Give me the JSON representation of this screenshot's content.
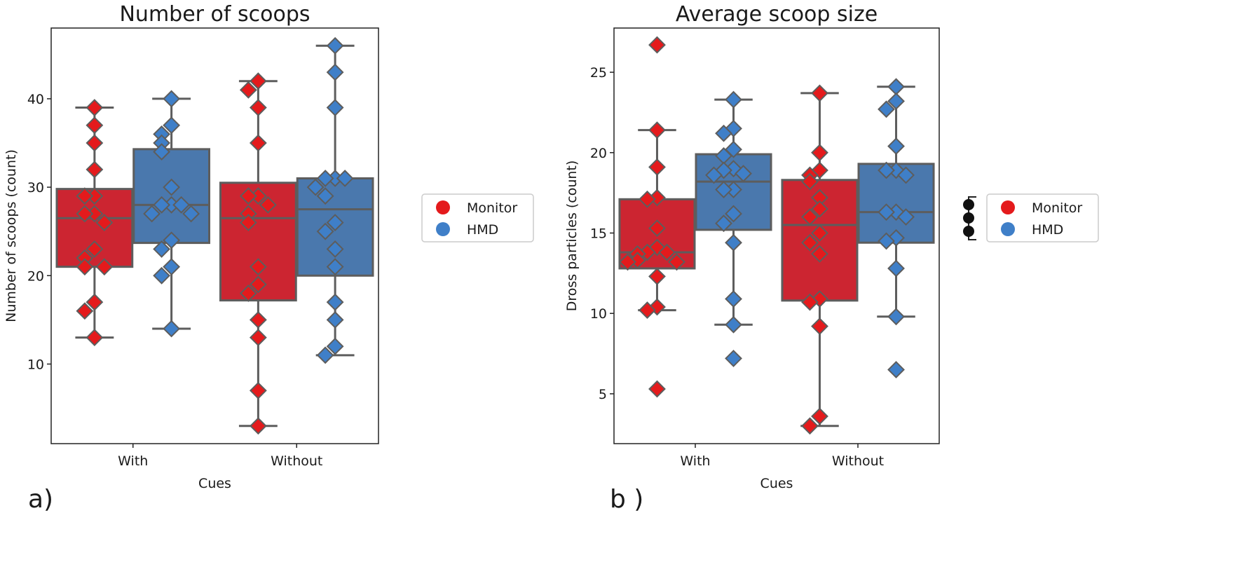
{
  "colors": {
    "Monitor": "#e41a1c",
    "HMD": "#3f7fc8",
    "box_Monitor": "#cc2531",
    "box_HMD": "#4a78ad",
    "edge": "#5d5d5d"
  },
  "legend": [
    "Monitor",
    "HMD"
  ],
  "panel_labels": [
    "a)",
    "b )"
  ],
  "chart_data": [
    {
      "type": "box",
      "title": "Number of scoops",
      "xlabel": "Cues",
      "ylabel": "Number of scoops (count)",
      "categories": [
        "With",
        "Without"
      ],
      "ylim": [
        1,
        48
      ],
      "yticks": [
        10,
        20,
        30,
        40
      ],
      "legend_position": "right-outside",
      "series": [
        {
          "name": "Monitor",
          "boxes": [
            {
              "q1": 21,
              "median": 26.5,
              "q3": 29.8,
              "whislo": 13,
              "whishi": 39,
              "points": [
                39,
                37,
                35,
                32,
                29,
                29,
                27,
                27,
                26,
                23,
                22,
                21,
                21,
                17,
                16,
                13
              ]
            },
            {
              "q1": 17.2,
              "median": 26.5,
              "q3": 30.5,
              "whislo": 3,
              "whishi": 42,
              "points": [
                42,
                41,
                39,
                35,
                29,
                29,
                28,
                27,
                26,
                21,
                19,
                18,
                15,
                13,
                7,
                3
              ]
            }
          ]
        },
        {
          "name": "HMD",
          "boxes": [
            {
              "q1": 23.7,
              "median": 28,
              "q3": 34.3,
              "whislo": 14,
              "whishi": 40,
              "points": [
                40,
                37,
                36,
                35,
                34,
                30,
                28,
                28,
                28,
                27,
                27,
                24,
                23,
                21,
                20,
                14
              ]
            },
            {
              "q1": 20,
              "median": 27.5,
              "q3": 31,
              "whislo": 11,
              "whishi": 46,
              "points": [
                46,
                43,
                39,
                31,
                31,
                31,
                30,
                29,
                26,
                25,
                23,
                21,
                17,
                15,
                12,
                11
              ]
            }
          ]
        }
      ]
    },
    {
      "type": "box",
      "title": "Average scoop size",
      "xlabel": "Cues",
      "ylabel": "Dross particles (count)",
      "categories": [
        "With",
        "Without"
      ],
      "ylim": [
        1.9,
        27.75
      ],
      "yticks": [
        5,
        10,
        15,
        20,
        25
      ],
      "legend_position": "right-outside",
      "series": [
        {
          "name": "Monitor",
          "boxes": [
            {
              "q1": 12.8,
              "median": 13.8,
              "q3": 17.1,
              "whislo": 10.2,
              "whishi": 21.4,
              "points": [
                26.7,
                21.4,
                19.1,
                17.2,
                17.1,
                15.3,
                14.1,
                13.8,
                13.8,
                13.7,
                13.3,
                13.2,
                13.2,
                12.3,
                10.4,
                10.2,
                5.3
              ]
            },
            {
              "q1": 10.8,
              "median": 15.5,
              "q3": 18.3,
              "whislo": 3.0,
              "whishi": 23.7,
              "points": [
                23.7,
                20.0,
                18.9,
                18.6,
                18.2,
                17.2,
                16.5,
                16.0,
                15.0,
                14.4,
                13.7,
                10.9,
                10.7,
                9.2,
                3.6,
                3.0
              ]
            }
          ]
        },
        {
          "name": "HMD",
          "boxes": [
            {
              "q1": 15.2,
              "median": 18.2,
              "q3": 19.9,
              "whislo": 9.3,
              "whishi": 23.3,
              "points": [
                23.3,
                21.5,
                21.2,
                20.2,
                19.8,
                19.0,
                18.9,
                18.7,
                18.6,
                17.7,
                17.7,
                16.2,
                15.6,
                14.4,
                10.9,
                9.3,
                7.2
              ]
            },
            {
              "q1": 14.4,
              "median": 16.3,
              "q3": 19.3,
              "whislo": 9.8,
              "whishi": 24.1,
              "points": [
                24.1,
                23.2,
                22.7,
                20.4,
                18.9,
                18.9,
                18.6,
                16.3,
                16.3,
                16.0,
                14.7,
                14.5,
                12.8,
                9.8,
                6.5
              ]
            }
          ]
        }
      ]
    }
  ]
}
